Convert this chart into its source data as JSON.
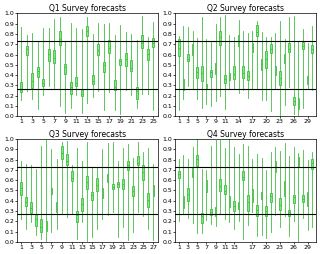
{
  "titles": [
    "Q1 Survey forecasts",
    "Q2 Survey forecasts",
    "Q3 Survey forecasts",
    "Q4 Survey forecasts"
  ],
  "hline1": 0.73,
  "hline2": 0.27,
  "box_facecolor": "#77ee77",
  "box_edgecolor": "#44bb44",
  "line_color": "black",
  "ylim": [
    0.0,
    1.0
  ],
  "yticks": [
    0.0,
    0.1,
    0.2,
    0.3,
    0.4,
    0.5,
    0.6,
    0.7,
    0.8,
    0.9,
    1.0
  ],
  "q1_n": 25,
  "q2_n": 30,
  "q3_n": 27,
  "q4_n": 30,
  "q1_xticks": [
    1,
    3,
    5,
    7,
    9,
    11,
    13,
    15,
    17,
    19,
    21,
    23,
    25
  ],
  "q2_xticks": [
    1,
    3,
    5,
    7,
    9,
    11,
    14,
    17,
    20,
    23,
    26,
    29
  ],
  "q3_xticks": [
    1,
    3,
    5,
    7,
    9,
    11,
    13,
    15,
    17,
    19,
    21,
    23,
    25,
    27
  ],
  "q4_xticks": [
    1,
    3,
    5,
    7,
    9,
    11,
    13,
    17,
    20,
    23,
    26,
    29
  ],
  "box_width": 0.35,
  "title_fontsize": 5.5,
  "tick_fontsize": 4.5,
  "linewidth": 0.6
}
